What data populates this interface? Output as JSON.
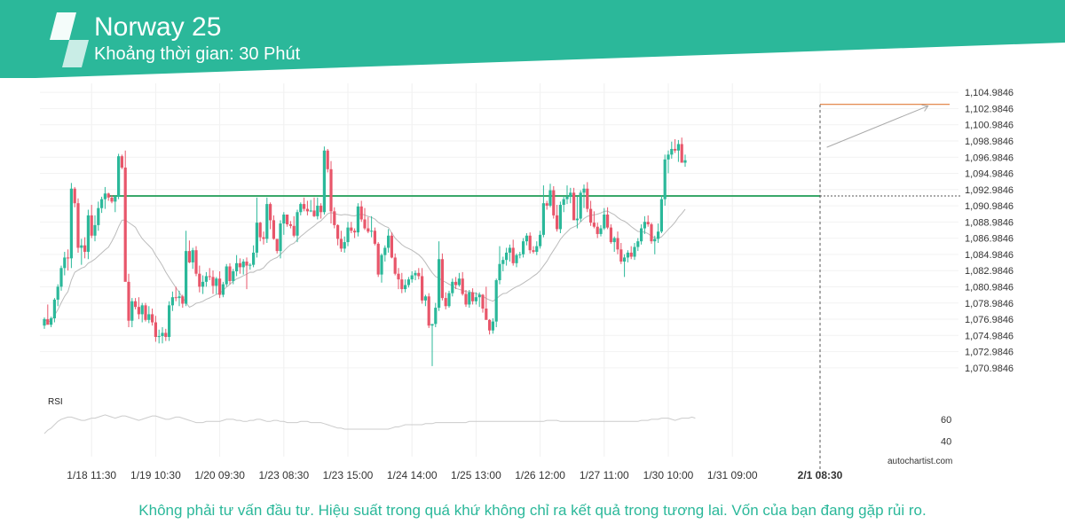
{
  "header": {
    "title": "Norway 25",
    "subtitle": "Khoảng thời gian: 30 Phút",
    "banner_color": "#2bb89a",
    "logo_icon": "autochartist-logo-icon"
  },
  "footer": {
    "disclaimer": "Không phải tư vấn đầu tư. Hiệu suất trong quá khứ không chỉ ra kết quả trong tương lai. Vốn của bạn đang gặp rủi ro.",
    "watermark": "autochartist.com"
  },
  "chart_data": {
    "type": "candlestick",
    "instrument": "Norway 25",
    "timeframe": "30 Phút",
    "ylim": [
      1069.9846,
      1105.9846
    ],
    "y_ticks": [
      "1,104.9846",
      "1,102.9846",
      "1,100.9846",
      "1,098.9846",
      "1,096.9846",
      "1,094.9846",
      "1,092.9846",
      "1,090.9846",
      "1,088.9846",
      "1,086.9846",
      "1,084.9846",
      "1,082.9846",
      "1,080.9846",
      "1,078.9846",
      "1,076.9846",
      "1,074.9846",
      "1,072.9846",
      "1,070.9846"
    ],
    "x_ticks": [
      {
        "index": 14,
        "label": "1/18 11:30"
      },
      {
        "index": 33,
        "label": "1/19 10:30"
      },
      {
        "index": 52,
        "label": "1/20 09:30"
      },
      {
        "index": 71,
        "label": "1/23 08:30"
      },
      {
        "index": 90,
        "label": "1/23 15:00"
      },
      {
        "index": 109,
        "label": "1/24 14:00"
      },
      {
        "index": 128,
        "label": "1/25 13:00"
      },
      {
        "index": 147,
        "label": "1/26 12:00"
      },
      {
        "index": 166,
        "label": "1/27 11:00"
      },
      {
        "index": 185,
        "label": "1/30 10:00"
      },
      {
        "index": 204,
        "label": "1/31 09:00"
      },
      {
        "index": 230,
        "label": "2/1 08:30"
      }
    ],
    "current_time_index": 230,
    "current_time_label": "2/1 08:30",
    "support_level": 1092.2,
    "target_level": 1103.5,
    "projection": {
      "from_index": 232,
      "from_value": 1098.2,
      "to_index": 262,
      "to_value": 1103.3
    },
    "colors": {
      "up": "#2bb89a",
      "down": "#e8566a",
      "ma": "#bbbbbb",
      "support": "#3aa86a",
      "target": "#e07b39"
    },
    "candles_ohlc": [
      [
        1076.2,
        1077.2,
        1075.8,
        1077.0
      ],
      [
        1077.0,
        1078.8,
        1076.4,
        1076.3
      ],
      [
        1076.3,
        1077.3,
        1076.0,
        1077.1
      ],
      [
        1077.1,
        1079.6,
        1076.6,
        1079.4
      ],
      [
        1079.4,
        1081.3,
        1078.6,
        1081.0
      ],
      [
        1081.0,
        1083.6,
        1080.5,
        1083.3
      ],
      [
        1083.3,
        1085.3,
        1082.4,
        1084.6
      ],
      [
        1084.6,
        1085.6,
        1083.0,
        1084.5
      ],
      [
        1084.5,
        1093.8,
        1083.3,
        1093.1
      ],
      [
        1093.1,
        1093.3,
        1090.8,
        1091.3
      ],
      [
        1091.3,
        1091.9,
        1085.2,
        1085.8
      ],
      [
        1085.8,
        1086.9,
        1083.7,
        1086.1
      ],
      [
        1086.1,
        1087.1,
        1084.5,
        1085.3
      ],
      [
        1085.3,
        1090.5,
        1084.4,
        1089.8
      ],
      [
        1089.8,
        1091.1,
        1087.0,
        1087.3
      ],
      [
        1087.3,
        1089.8,
        1086.6,
        1088.6
      ],
      [
        1088.6,
        1091.5,
        1087.9,
        1090.7
      ],
      [
        1090.7,
        1092.1,
        1090.1,
        1091.8
      ],
      [
        1091.8,
        1093.3,
        1090.6,
        1092.5
      ],
      [
        1092.5,
        1092.6,
        1091.6,
        1092.0
      ],
      [
        1092.0,
        1092.3,
        1091.3,
        1091.5
      ],
      [
        1091.5,
        1092.3,
        1090.2,
        1092.1
      ],
      [
        1092.1,
        1097.4,
        1091.8,
        1097.1
      ],
      [
        1097.1,
        1097.3,
        1095.5,
        1095.7
      ],
      [
        1095.7,
        1097.8,
        1094.8,
        1081.6
      ],
      [
        1081.6,
        1082.6,
        1076.0,
        1076.8
      ],
      [
        1076.8,
        1079.6,
        1076.0,
        1079.2
      ],
      [
        1079.2,
        1079.6,
        1078.2,
        1078.5
      ],
      [
        1078.5,
        1079.7,
        1077.0,
        1077.6
      ],
      [
        1077.6,
        1079.0,
        1076.6,
        1078.7
      ],
      [
        1078.7,
        1079.0,
        1076.7,
        1076.9
      ],
      [
        1076.9,
        1078.6,
        1076.5,
        1077.6
      ],
      [
        1077.6,
        1078.3,
        1076.2,
        1076.6
      ],
      [
        1076.6,
        1077.4,
        1074.2,
        1074.8
      ],
      [
        1074.8,
        1075.7,
        1074.0,
        1074.9
      ],
      [
        1074.9,
        1076.0,
        1074.0,
        1075.3
      ],
      [
        1075.3,
        1075.8,
        1074.3,
        1074.8
      ],
      [
        1074.8,
        1079.2,
        1074.3,
        1078.7
      ],
      [
        1078.7,
        1080.4,
        1078.0,
        1079.7
      ],
      [
        1079.7,
        1081.0,
        1079.2,
        1079.6
      ],
      [
        1079.6,
        1080.5,
        1078.6,
        1079.8
      ],
      [
        1079.8,
        1080.0,
        1078.4,
        1078.9
      ],
      [
        1078.9,
        1087.9,
        1078.6,
        1085.4
      ],
      [
        1085.4,
        1086.7,
        1083.9,
        1084.0
      ],
      [
        1084.0,
        1085.8,
        1083.2,
        1085.5
      ],
      [
        1085.5,
        1086.0,
        1082.3,
        1082.6
      ],
      [
        1082.6,
        1083.6,
        1080.3,
        1081.0
      ],
      [
        1081.0,
        1082.4,
        1080.1,
        1081.6
      ],
      [
        1081.6,
        1082.8,
        1081.0,
        1082.3
      ],
      [
        1082.3,
        1083.3,
        1081.8,
        1082.2
      ],
      [
        1082.2,
        1083.0,
        1080.1,
        1081.1
      ],
      [
        1081.1,
        1082.2,
        1080.1,
        1082.0
      ],
      [
        1082.0,
        1082.9,
        1079.6,
        1080.0
      ],
      [
        1080.0,
        1081.6,
        1079.7,
        1081.3
      ],
      [
        1081.3,
        1083.8,
        1081.0,
        1083.5
      ],
      [
        1083.5,
        1083.9,
        1081.3,
        1081.7
      ],
      [
        1081.7,
        1083.2,
        1081.3,
        1082.9
      ],
      [
        1082.9,
        1084.9,
        1082.3,
        1083.9
      ],
      [
        1083.9,
        1084.5,
        1082.6,
        1083.4
      ],
      [
        1083.4,
        1084.4,
        1082.5,
        1084.1
      ],
      [
        1084.1,
        1084.6,
        1080.7,
        1083.6
      ],
      [
        1083.6,
        1083.9,
        1083.1,
        1083.7
      ],
      [
        1083.7,
        1086.1,
        1083.4,
        1085.2
      ],
      [
        1085.2,
        1092.0,
        1084.6,
        1088.9
      ],
      [
        1088.9,
        1089.0,
        1086.6,
        1087.1
      ],
      [
        1087.1,
        1087.8,
        1086.2,
        1086.9
      ],
      [
        1086.9,
        1092.0,
        1086.4,
        1091.2
      ],
      [
        1091.2,
        1091.4,
        1088.1,
        1089.2
      ],
      [
        1089.2,
        1089.8,
        1086.8,
        1086.9
      ],
      [
        1086.9,
        1086.3,
        1085.1,
        1085.4
      ],
      [
        1085.4,
        1089.2,
        1084.5,
        1088.8
      ],
      [
        1088.8,
        1090.2,
        1087.4,
        1089.9
      ],
      [
        1089.9,
        1089.9,
        1088.4,
        1088.7
      ],
      [
        1088.7,
        1089.1,
        1088.2,
        1088.5
      ],
      [
        1088.5,
        1089.7,
        1087.1,
        1087.3
      ],
      [
        1087.3,
        1090.5,
        1086.5,
        1090.2
      ],
      [
        1090.2,
        1091.4,
        1089.8,
        1091.2
      ],
      [
        1091.2,
        1092.0,
        1090.3,
        1090.6
      ],
      [
        1090.6,
        1091.6,
        1089.8,
        1090.3
      ],
      [
        1090.3,
        1091.7,
        1090.2,
        1090.4
      ],
      [
        1090.4,
        1092.0,
        1089.6,
        1089.7
      ],
      [
        1089.7,
        1092.0,
        1089.3,
        1091.0
      ],
      [
        1091.0,
        1091.3,
        1089.4,
        1090.2
      ],
      [
        1090.2,
        1098.3,
        1089.9,
        1097.8
      ],
      [
        1097.8,
        1098.0,
        1095.1,
        1095.5
      ],
      [
        1095.5,
        1096.5,
        1088.8,
        1090.3
      ],
      [
        1090.3,
        1090.8,
        1088.2,
        1088.6
      ],
      [
        1088.6,
        1088.7,
        1086.1,
        1086.9
      ],
      [
        1086.9,
        1087.9,
        1085.3,
        1085.7
      ],
      [
        1085.7,
        1087.2,
        1085.2,
        1086.5
      ],
      [
        1086.5,
        1089.0,
        1086.0,
        1088.3
      ],
      [
        1088.3,
        1089.0,
        1087.6,
        1087.9
      ],
      [
        1087.9,
        1088.2,
        1087.0,
        1087.7
      ],
      [
        1087.7,
        1091.3,
        1087.2,
        1090.9
      ],
      [
        1090.9,
        1091.6,
        1089.0,
        1089.3
      ],
      [
        1089.3,
        1090.7,
        1088.0,
        1088.2
      ],
      [
        1088.2,
        1089.6,
        1087.6,
        1087.8
      ],
      [
        1087.8,
        1089.7,
        1087.1,
        1087.9
      ],
      [
        1087.9,
        1088.3,
        1086.1,
        1086.3
      ],
      [
        1086.3,
        1086.5,
        1082.2,
        1082.5
      ],
      [
        1082.5,
        1085.1,
        1081.5,
        1084.9
      ],
      [
        1084.9,
        1086.1,
        1084.1,
        1085.8
      ],
      [
        1085.8,
        1088.1,
        1085.2,
        1087.3
      ],
      [
        1087.3,
        1087.7,
        1084.5,
        1084.6
      ],
      [
        1084.6,
        1085.1,
        1082.4,
        1082.6
      ],
      [
        1082.6,
        1083.3,
        1080.7,
        1081.9
      ],
      [
        1081.9,
        1082.7,
        1080.2,
        1080.7
      ],
      [
        1080.7,
        1081.9,
        1080.3,
        1081.2
      ],
      [
        1081.2,
        1082.2,
        1080.9,
        1081.9
      ],
      [
        1081.9,
        1082.9,
        1081.5,
        1082.4
      ],
      [
        1082.4,
        1083.0,
        1081.8,
        1082.7
      ],
      [
        1082.7,
        1083.3,
        1081.9,
        1082.3
      ],
      [
        1082.3,
        1083.3,
        1078.9,
        1079.3
      ],
      [
        1079.3,
        1080.0,
        1078.6,
        1079.8
      ],
      [
        1079.8,
        1080.2,
        1075.9,
        1076.2
      ],
      [
        1076.2,
        1076.3,
        1071.2,
        1076.4
      ],
      [
        1076.4,
        1079.0,
        1076.0,
        1078.4
      ],
      [
        1078.4,
        1086.6,
        1078.0,
        1084.4
      ],
      [
        1084.4,
        1085.1,
        1079.3,
        1079.6
      ],
      [
        1079.6,
        1080.3,
        1078.2,
        1078.6
      ],
      [
        1078.6,
        1080.5,
        1078.4,
        1080.2
      ],
      [
        1080.2,
        1082.0,
        1079.8,
        1081.6
      ],
      [
        1081.6,
        1082.2,
        1080.7,
        1081.2
      ],
      [
        1081.2,
        1082.7,
        1081.0,
        1082.0
      ],
      [
        1082.0,
        1082.8,
        1079.9,
        1080.1
      ],
      [
        1080.1,
        1080.6,
        1078.5,
        1078.8
      ],
      [
        1078.8,
        1080.6,
        1078.4,
        1080.3
      ],
      [
        1080.3,
        1080.8,
        1078.8,
        1079.2
      ],
      [
        1079.2,
        1080.3,
        1078.8,
        1079.7
      ],
      [
        1079.7,
        1080.3,
        1078.5,
        1080.0
      ],
      [
        1080.0,
        1080.1,
        1077.8,
        1078.3
      ],
      [
        1078.3,
        1081.0,
        1077.0,
        1076.9
      ],
      [
        1076.9,
        1077.0,
        1075.1,
        1075.6
      ],
      [
        1075.6,
        1077.1,
        1075.2,
        1076.7
      ],
      [
        1076.7,
        1082.0,
        1076.0,
        1081.8
      ],
      [
        1081.8,
        1086.0,
        1081.3,
        1083.8
      ],
      [
        1083.8,
        1084.7,
        1082.9,
        1084.3
      ],
      [
        1084.3,
        1085.8,
        1083.6,
        1085.2
      ],
      [
        1085.2,
        1086.2,
        1084.1,
        1085.8
      ],
      [
        1085.8,
        1086.8,
        1083.6,
        1083.9
      ],
      [
        1083.9,
        1085.1,
        1083.4,
        1084.9
      ],
      [
        1084.9,
        1085.3,
        1084.5,
        1085.0
      ],
      [
        1085.0,
        1087.0,
        1084.6,
        1086.6
      ],
      [
        1086.6,
        1087.6,
        1086.1,
        1087.3
      ],
      [
        1087.3,
        1087.7,
        1085.1,
        1085.5
      ],
      [
        1085.5,
        1086.0,
        1085.1,
        1085.3
      ],
      [
        1085.3,
        1086.6,
        1084.9,
        1086.0
      ],
      [
        1086.0,
        1087.9,
        1085.7,
        1087.4
      ],
      [
        1087.4,
        1093.5,
        1087.1,
        1091.3
      ],
      [
        1091.3,
        1091.6,
        1090.5,
        1091.0
      ],
      [
        1091.0,
        1093.7,
        1090.8,
        1092.9
      ],
      [
        1092.9,
        1093.4,
        1089.4,
        1089.8
      ],
      [
        1089.8,
        1091.1,
        1087.8,
        1088.1
      ],
      [
        1088.1,
        1091.5,
        1087.6,
        1091.1
      ],
      [
        1091.1,
        1092.2,
        1090.2,
        1091.8
      ],
      [
        1091.8,
        1093.5,
        1091.2,
        1092.1
      ],
      [
        1092.1,
        1093.2,
        1091.3,
        1092.6
      ],
      [
        1092.6,
        1093.2,
        1090.6,
        1089.2
      ],
      [
        1089.2,
        1092.1,
        1088.2,
        1089.4
      ],
      [
        1089.4,
        1092.9,
        1089.0,
        1092.6
      ],
      [
        1092.6,
        1093.6,
        1090.7,
        1093.1
      ],
      [
        1093.1,
        1093.9,
        1090.2,
        1090.6
      ],
      [
        1090.6,
        1091.6,
        1088.5,
        1088.9
      ],
      [
        1088.9,
        1090.3,
        1088.2,
        1088.4
      ],
      [
        1088.4,
        1088.9,
        1087.0,
        1087.5
      ],
      [
        1087.5,
        1088.6,
        1087.2,
        1088.2
      ],
      [
        1088.2,
        1090.7,
        1088.0,
        1089.9
      ],
      [
        1089.9,
        1090.8,
        1088.1,
        1088.3
      ],
      [
        1088.3,
        1088.7,
        1086.3,
        1086.5
      ],
      [
        1086.5,
        1087.2,
        1085.3,
        1087.0
      ],
      [
        1087.0,
        1087.8,
        1085.0,
        1085.6
      ],
      [
        1085.6,
        1086.4,
        1083.8,
        1084.1
      ],
      [
        1084.1,
        1085.0,
        1082.2,
        1084.6
      ],
      [
        1084.6,
        1085.5,
        1084.0,
        1085.2
      ],
      [
        1085.2,
        1086.0,
        1084.4,
        1084.7
      ],
      [
        1084.7,
        1086.4,
        1084.3,
        1085.9
      ],
      [
        1085.9,
        1087.0,
        1085.4,
        1086.6
      ],
      [
        1086.6,
        1088.7,
        1086.2,
        1088.2
      ],
      [
        1088.2,
        1089.7,
        1087.5,
        1089.0
      ],
      [
        1089.0,
        1089.8,
        1088.4,
        1088.7
      ],
      [
        1088.7,
        1088.9,
        1086.3,
        1086.6
      ],
      [
        1086.6,
        1087.3,
        1085.0,
        1086.9
      ],
      [
        1086.9,
        1088.8,
        1086.4,
        1087.8
      ],
      [
        1087.8,
        1092.3,
        1087.6,
        1091.8
      ],
      [
        1091.8,
        1097.3,
        1091.0,
        1096.7
      ],
      [
        1096.7,
        1097.8,
        1095.0,
        1097.3
      ],
      [
        1097.3,
        1098.9,
        1096.8,
        1098.0
      ],
      [
        1098.0,
        1099.2,
        1097.5,
        1097.8
      ],
      [
        1097.8,
        1099.1,
        1096.4,
        1098.6
      ],
      [
        1098.6,
        1099.4,
        1096.3,
        1096.3
      ],
      [
        1096.3,
        1097.3,
        1095.8,
        1096.6
      ]
    ],
    "rsi": {
      "label": "RSI",
      "ticks": [
        60,
        40
      ],
      "ylim": [
        30,
        72
      ],
      "values": [
        47,
        50,
        52,
        55,
        58,
        60,
        61,
        62,
        62,
        61,
        60,
        59,
        59,
        60,
        61,
        61,
        62,
        63,
        64,
        63,
        62,
        61,
        62,
        63,
        63,
        62,
        61,
        60,
        59,
        60,
        61,
        62,
        63,
        63,
        62,
        61,
        60,
        60,
        61,
        62,
        62,
        61,
        60,
        59,
        58,
        57,
        57,
        57,
        58,
        58,
        58,
        58,
        58,
        59,
        60,
        60,
        60,
        59,
        59,
        58,
        58,
        59,
        59,
        60,
        60,
        59,
        58,
        58,
        59,
        59,
        58,
        58,
        57,
        57,
        57,
        57,
        58,
        58,
        58,
        57,
        57,
        57,
        57,
        56,
        55,
        54,
        53,
        52,
        52,
        51,
        51,
        51,
        51,
        51,
        51,
        51,
        51,
        51,
        51,
        51,
        51,
        51,
        51,
        52,
        53,
        53,
        54,
        55,
        55,
        55,
        55,
        55,
        55,
        56,
        56,
        56,
        57,
        57,
        57,
        57,
        57,
        57,
        57,
        57,
        57,
        57,
        58,
        58,
        58,
        58,
        58,
        58,
        58,
        58,
        58,
        58,
        58,
        58,
        58,
        58,
        58,
        58,
        58,
        58,
        58,
        58,
        58,
        58,
        58,
        59,
        59,
        59,
        59,
        58,
        58,
        58,
        58,
        58,
        58,
        58,
        58,
        58,
        58,
        58,
        58,
        58,
        58,
        58,
        58,
        58,
        58,
        58,
        58,
        58,
        58,
        58,
        58,
        59,
        59,
        59,
        60,
        60,
        60,
        61,
        61,
        61,
        60,
        59,
        60,
        61,
        61,
        61,
        62,
        61
      ]
    }
  }
}
